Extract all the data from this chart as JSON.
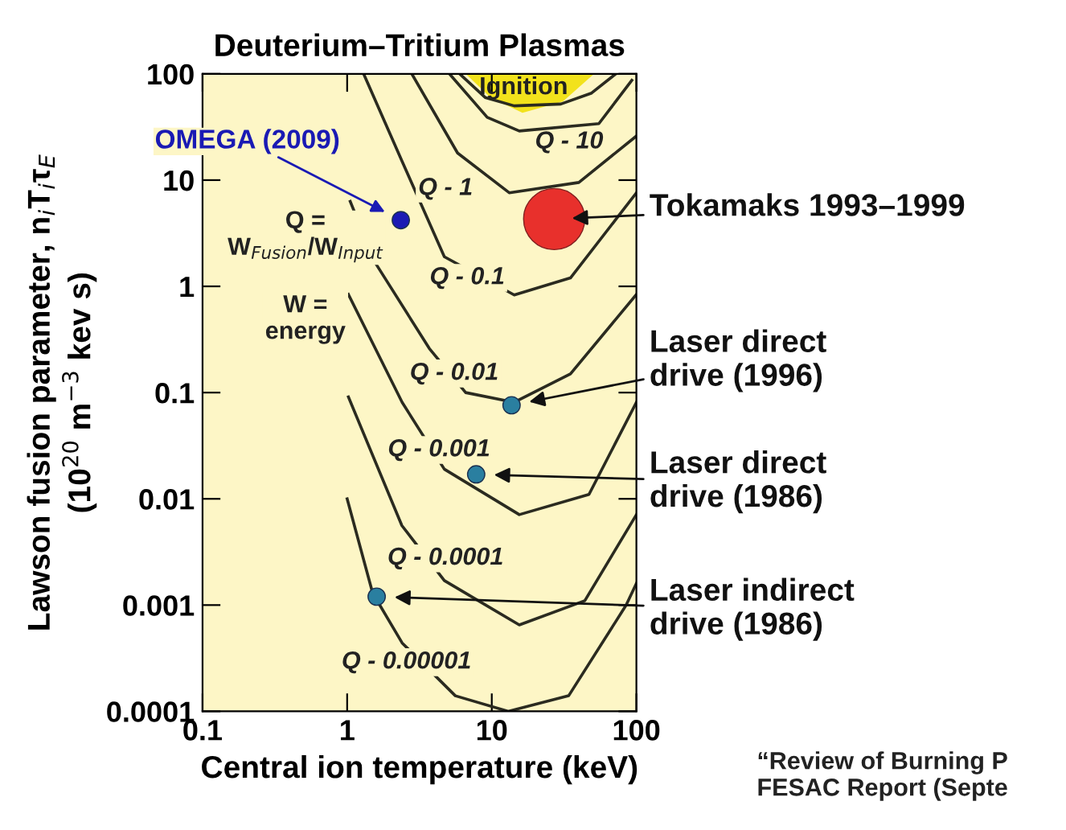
{
  "chart_data": {
    "type": "line",
    "title": "Deuterium–Tritium Plasmas",
    "xlabel": "Central ion temperature (keV)",
    "ylabel": "Lawson fusion parameter, n$_{i}$T$_{i}$τ$_{E}$\n(10$^{20}$ m$^{−3}$ kev s)",
    "log": "xy",
    "xlim": [
      0.1,
      100
    ],
    "ylim": [
      0.0001,
      100
    ],
    "xticks": [
      0.1,
      1,
      10,
      100
    ],
    "yticks": [
      0.0001,
      0.001,
      0.01,
      0.1,
      1,
      10,
      100
    ],
    "grid": false,
    "legend": false,
    "marker": "none",
    "line_style": "solid",
    "series": [
      {
        "type": "area",
        "color": "#f2e21c",
        "x": [
          6.6,
          9.8,
          16.3,
          31,
          51
        ],
        "values": [
          100,
          60,
          43,
          55,
          100
        ]
      },
      {
        "color": "#2b2b20",
        "x": [
          6.0,
          9,
          14.3,
          30,
          49,
          72
        ],
        "values": [
          100,
          60,
          50,
          52,
          66,
          100
        ]
      },
      {
        "color": "#2b2b20",
        "x": [
          5.1,
          9.3,
          15.5,
          55,
          93
        ],
        "values": [
          100,
          39,
          29,
          34,
          87
        ]
      },
      {
        "color": "#2b2b20",
        "x": [
          2.8,
          5.8,
          13.2,
          40,
          100
        ],
        "values": [
          100,
          18,
          7.6,
          9.5,
          26
        ]
      },
      {
        "color": "#2b2b20",
        "x": [
          1.3,
          2.4,
          4.7,
          14.3,
          35,
          100
        ],
        "values": [
          100,
          15,
          1.9,
          0.83,
          1.2,
          7.6
        ]
      },
      {
        "color": "#2b2b20",
        "x": [
          1.05,
          1.55,
          3.7,
          6.6,
          14.3,
          35,
          100
        ],
        "values": [
          6.3,
          1.7,
          0.26,
          0.1,
          0.081,
          0.15,
          0.84
        ]
      },
      {
        "color": "#2b2b20",
        "x": [
          1.02,
          2.4,
          4.7,
          15.5,
          47,
          100
        ],
        "values": [
          0.84,
          0.081,
          0.019,
          0.0071,
          0.011,
          0.081
        ]
      },
      {
        "color": "#2b2b20",
        "x": [
          1.02,
          2.39,
          4.7,
          15.5,
          44,
          100
        ],
        "values": [
          0.091,
          0.0056,
          0.0017,
          0.00065,
          0.0011,
          0.0071
        ]
      },
      {
        "color": "#2b2b20",
        "x": [
          1,
          1.5,
          2.4,
          5.6,
          13,
          34,
          85,
          100
        ],
        "values": [
          0.01,
          0.0013,
          0.00044,
          0.00014,
          0.0001,
          0.00014,
          0.001,
          0.0016
        ]
      },
      {
        "type": "scatter",
        "marker": "circle",
        "name": "OMEGA (2009)",
        "color": "#1a1ab4",
        "x": [
          2.35
        ],
        "values": [
          4.2
        ]
      },
      {
        "type": "bubble",
        "marker": "circle",
        "name": "Tokamaks 1993–1999",
        "color": "#e8302c",
        "x": [
          27
        ],
        "values": [
          4.3
        ],
        "sizes": [
          1
        ]
      },
      {
        "type": "scatter",
        "marker": "circle",
        "name": "Laser direct\ndrive (1996)",
        "color": "#2a7fa0",
        "x": [
          13.7
        ],
        "values": [
          0.076
        ]
      },
      {
        "type": "scatter",
        "marker": "circle",
        "name": "Laser direct\ndrive (1986)",
        "color": "#2a7fa0",
        "x": [
          7.8
        ],
        "values": [
          0.017
        ]
      },
      {
        "type": "scatter",
        "marker": "circle",
        "name": "Laser indirect\ndrive (1986)",
        "color": "#2a7fa0",
        "x": [
          1.6
        ],
        "values": [
          0.0012
        ]
      }
    ],
    "annotations": [
      "Ignition",
      "Q - 10",
      "Q - 1",
      "Q - 0.1",
      "Q - 0.01",
      "Q - 0.001",
      "Q - 0.0001",
      "Q - 0.00001",
      "Q =\nW$_{Fusion}$/W$_{Input}$",
      "W =\nenergy",
      "“Review of Burning P\nFESAC Report (Septe"
    ]
  }
}
